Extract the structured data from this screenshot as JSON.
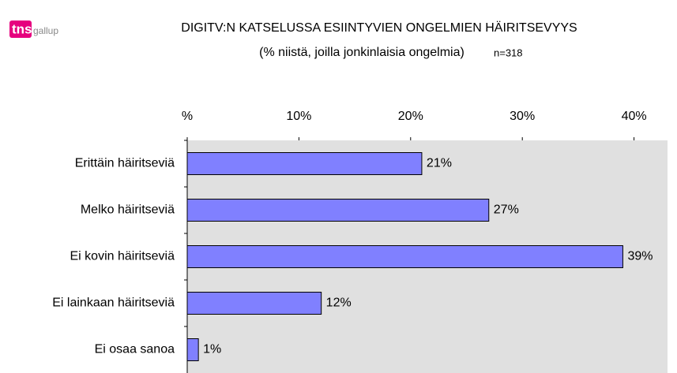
{
  "logo": {
    "brand": "tns",
    "sub": "gallup"
  },
  "chart_data": {
    "type": "hbar",
    "title": "DIGITV:N KATSELUSSA ESIINTYVIEN ONGELMIEN HÄIRITSEVYYS",
    "subtitle": "(% niistä, joilla jonkinlaisia ongelmia)",
    "note": "n=318",
    "categories": [
      "Erittäin häiritseviä",
      "Melko häiritseviä",
      "Ei kovin häiritseviä",
      "Ei lainkaan häiritseviä",
      "Ei osaa sanoa"
    ],
    "values": [
      21,
      27,
      39,
      12,
      1
    ],
    "value_labels": [
      "21%",
      "27%",
      "39%",
      "12%",
      "1%"
    ],
    "color": "#8080ff",
    "xlim": [
      0,
      43
    ],
    "xticks": [
      {
        "value": 0,
        "label": "%"
      },
      {
        "value": 10,
        "label": "10%"
      },
      {
        "value": 20,
        "label": "20%"
      },
      {
        "value": 30,
        "label": "30%"
      },
      {
        "value": 40,
        "label": "40%"
      }
    ],
    "grid": false
  }
}
